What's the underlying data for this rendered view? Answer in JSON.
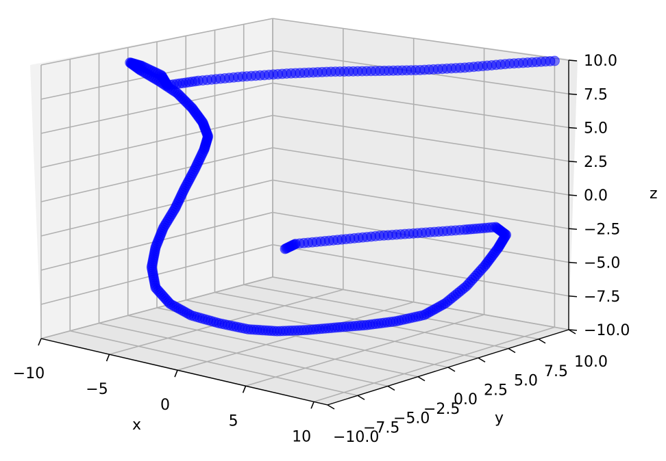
{
  "chart_data": {
    "type": "scatter",
    "projection": "3d",
    "title": "",
    "xlabel": "x",
    "ylabel": "y",
    "zlabel": "z",
    "xlim": [
      -10,
      11
    ],
    "ylim": [
      -10,
      10
    ],
    "zlim": [
      -10,
      10
    ],
    "x_ticks": [
      "−10",
      "−5",
      "0",
      "5",
      "10"
    ],
    "y_ticks": [
      "−10.0",
      "−7.5",
      "−5.0",
      "−2.5",
      "0.0",
      "2.5",
      "5.0",
      "7.5",
      "10.0"
    ],
    "z_ticks": [
      "−10.0",
      "−7.5",
      "−5.0",
      "−2.5",
      "0.0",
      "2.5",
      "5.0",
      "7.5",
      "10.0"
    ],
    "grid": true,
    "legend": "none",
    "series": [
      {
        "color": "#0000ff",
        "alpha": 0.5,
        "marker": "circle",
        "points": [
          [
            10.0,
            10.0,
            9.8
          ],
          [
            8.0,
            8.6,
            9.6
          ],
          [
            6.0,
            7.2,
            9.3
          ],
          [
            4.0,
            5.8,
            9.1
          ],
          [
            2.0,
            4.4,
            9.0
          ],
          [
            0.0,
            3.0,
            8.9
          ],
          [
            -2.0,
            1.6,
            8.7
          ],
          [
            -4.0,
            0.2,
            8.4
          ],
          [
            -6.0,
            -1.2,
            8.0
          ],
          [
            -7.4,
            -2.2,
            7.6
          ],
          [
            -8.0,
            -2.0,
            8.2
          ],
          [
            -9.0,
            -2.5,
            8.8
          ],
          [
            -9.6,
            -2.8,
            9.0
          ],
          [
            -9.0,
            -2.6,
            8.5
          ],
          [
            -8.0,
            -2.2,
            7.8
          ],
          [
            -7.0,
            -1.8,
            7.0
          ],
          [
            -6.2,
            -1.5,
            6.0
          ],
          [
            -5.6,
            -1.3,
            5.0
          ],
          [
            -5.3,
            -1.2,
            4.0
          ],
          [
            -5.5,
            -1.3,
            3.0
          ],
          [
            -6.0,
            -1.5,
            1.5
          ],
          [
            -6.5,
            -1.8,
            0.0
          ],
          [
            -7.0,
            -2.0,
            -1.5
          ],
          [
            -7.6,
            -2.3,
            -3.0
          ],
          [
            -8.0,
            -2.5,
            -4.5
          ],
          [
            -8.2,
            -2.6,
            -6.0
          ],
          [
            -8.0,
            -2.5,
            -7.5
          ],
          [
            -7.2,
            -2.2,
            -8.6
          ],
          [
            -6.0,
            -1.8,
            -9.3
          ],
          [
            -4.5,
            -1.2,
            -9.7
          ],
          [
            -3.0,
            -0.5,
            -10.0
          ],
          [
            -1.5,
            0.2,
            -10.0
          ],
          [
            0.0,
            1.0,
            -9.8
          ],
          [
            1.5,
            1.8,
            -9.5
          ],
          [
            3.0,
            2.5,
            -9.2
          ],
          [
            4.5,
            3.2,
            -8.8
          ],
          [
            6.0,
            3.8,
            -8.2
          ],
          [
            7.0,
            4.4,
            -7.3
          ],
          [
            8.0,
            5.0,
            -6.0
          ],
          [
            8.8,
            5.6,
            -4.5
          ],
          [
            9.4,
            6.0,
            -3.2
          ],
          [
            9.8,
            6.2,
            -2.2
          ],
          [
            9.4,
            5.8,
            -1.6
          ],
          [
            8.0,
            4.8,
            -1.8
          ],
          [
            6.0,
            3.6,
            -2.1
          ],
          [
            4.0,
            2.4,
            -2.4
          ],
          [
            2.0,
            1.2,
            -2.8
          ],
          [
            0.0,
            0.0,
            -3.2
          ],
          [
            -0.5,
            -0.3,
            -3.6
          ]
        ]
      }
    ]
  }
}
